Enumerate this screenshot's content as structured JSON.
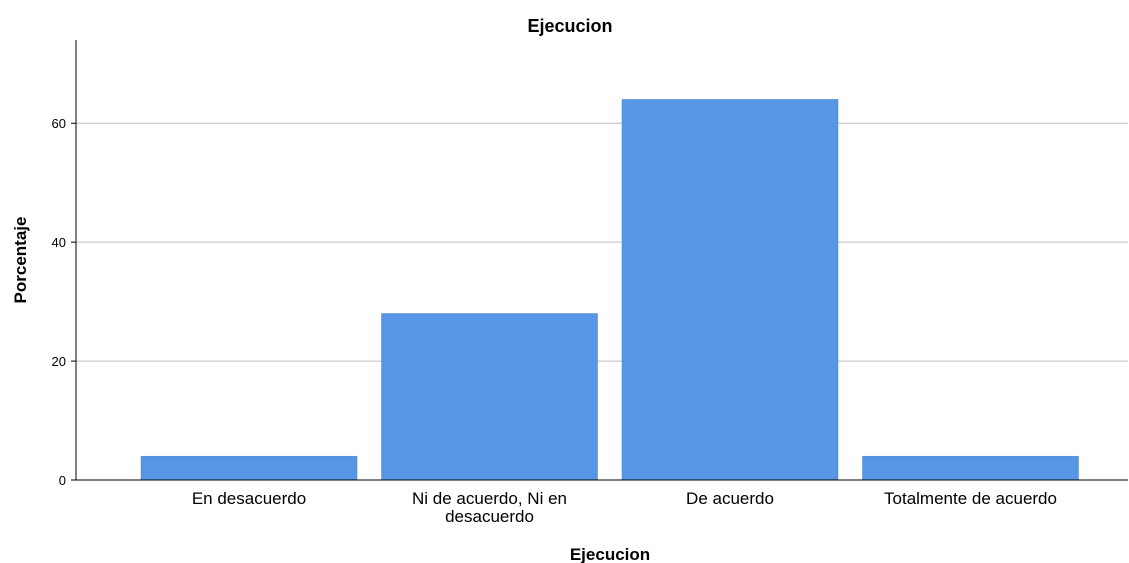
{
  "chart_data": {
    "type": "bar",
    "title": "Ejecucion",
    "xlabel": "Ejecucion",
    "ylabel": "Porcentaje",
    "categories": [
      [
        "En desacuerdo"
      ],
      [
        "Ni de acuerdo, Ni en",
        "desacuerdo"
      ],
      [
        "De acuerdo"
      ],
      [
        "Totalmente de acuerdo"
      ]
    ],
    "values": [
      4,
      28,
      64,
      4
    ],
    "ylim": [
      0,
      74
    ],
    "yticks": [
      0,
      20,
      40,
      60
    ],
    "grid": true,
    "colors": {
      "bar": "#5796E4",
      "bar_edge": "#4F86CF",
      "grid": "#BDBDBD",
      "axis": "#000000"
    }
  }
}
